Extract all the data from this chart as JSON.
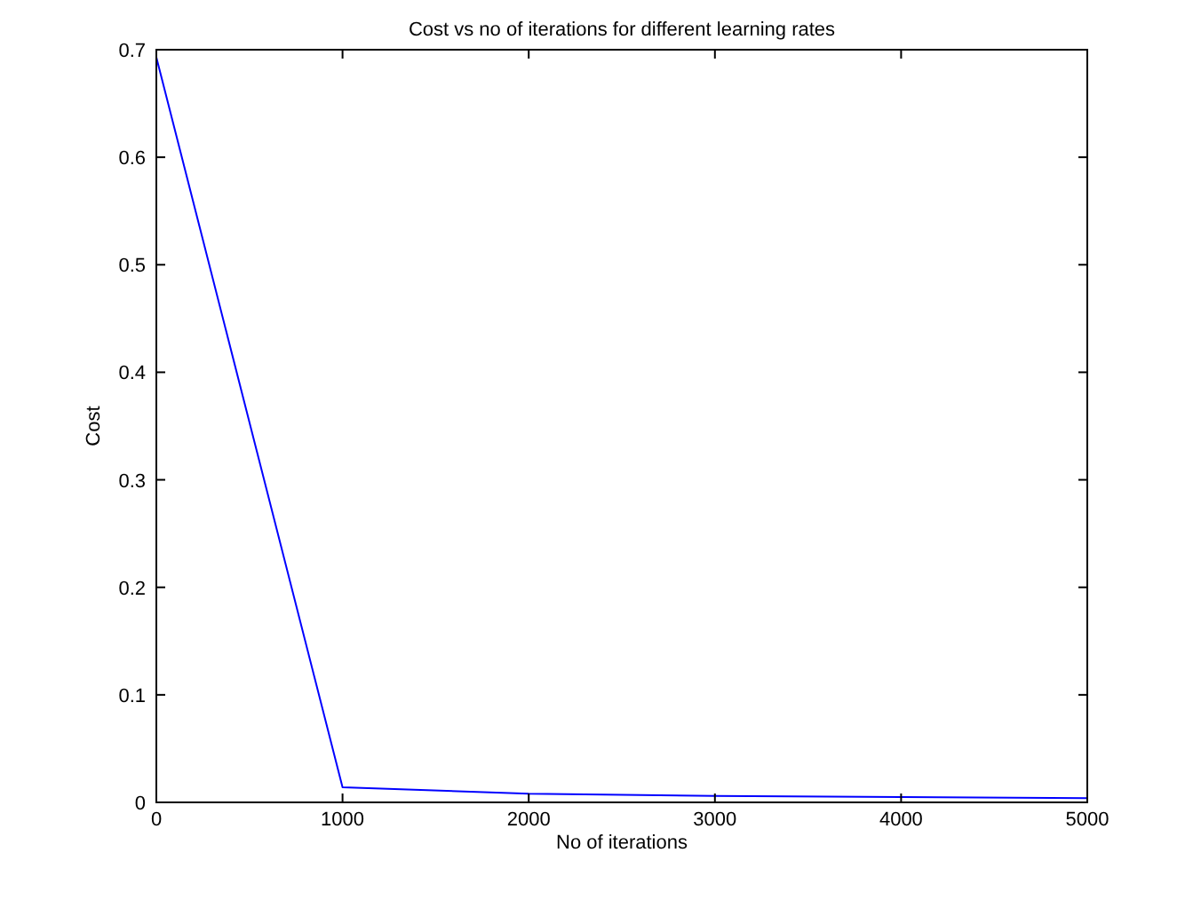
{
  "chart_data": {
    "type": "line",
    "title": "Cost vs no of iterations for different learning rates",
    "xlabel": "No of iterations",
    "ylabel": "Cost",
    "x": [
      0,
      1000,
      2000,
      3000,
      4000,
      5000
    ],
    "series": [
      {
        "color": "#0000ff",
        "values": [
          0.693,
          0.014,
          0.008,
          0.006,
          0.005,
          0.004
        ]
      }
    ],
    "xlim": [
      0,
      5000
    ],
    "xticks": [
      0,
      1000,
      2000,
      3000,
      4000,
      5000
    ],
    "ylim": [
      0,
      0.7
    ],
    "yticks": [
      0,
      0.1,
      0.2,
      0.3,
      0.4,
      0.5,
      0.6,
      0.7
    ],
    "grid": false,
    "marker": "none",
    "line_style": "solid"
  }
}
